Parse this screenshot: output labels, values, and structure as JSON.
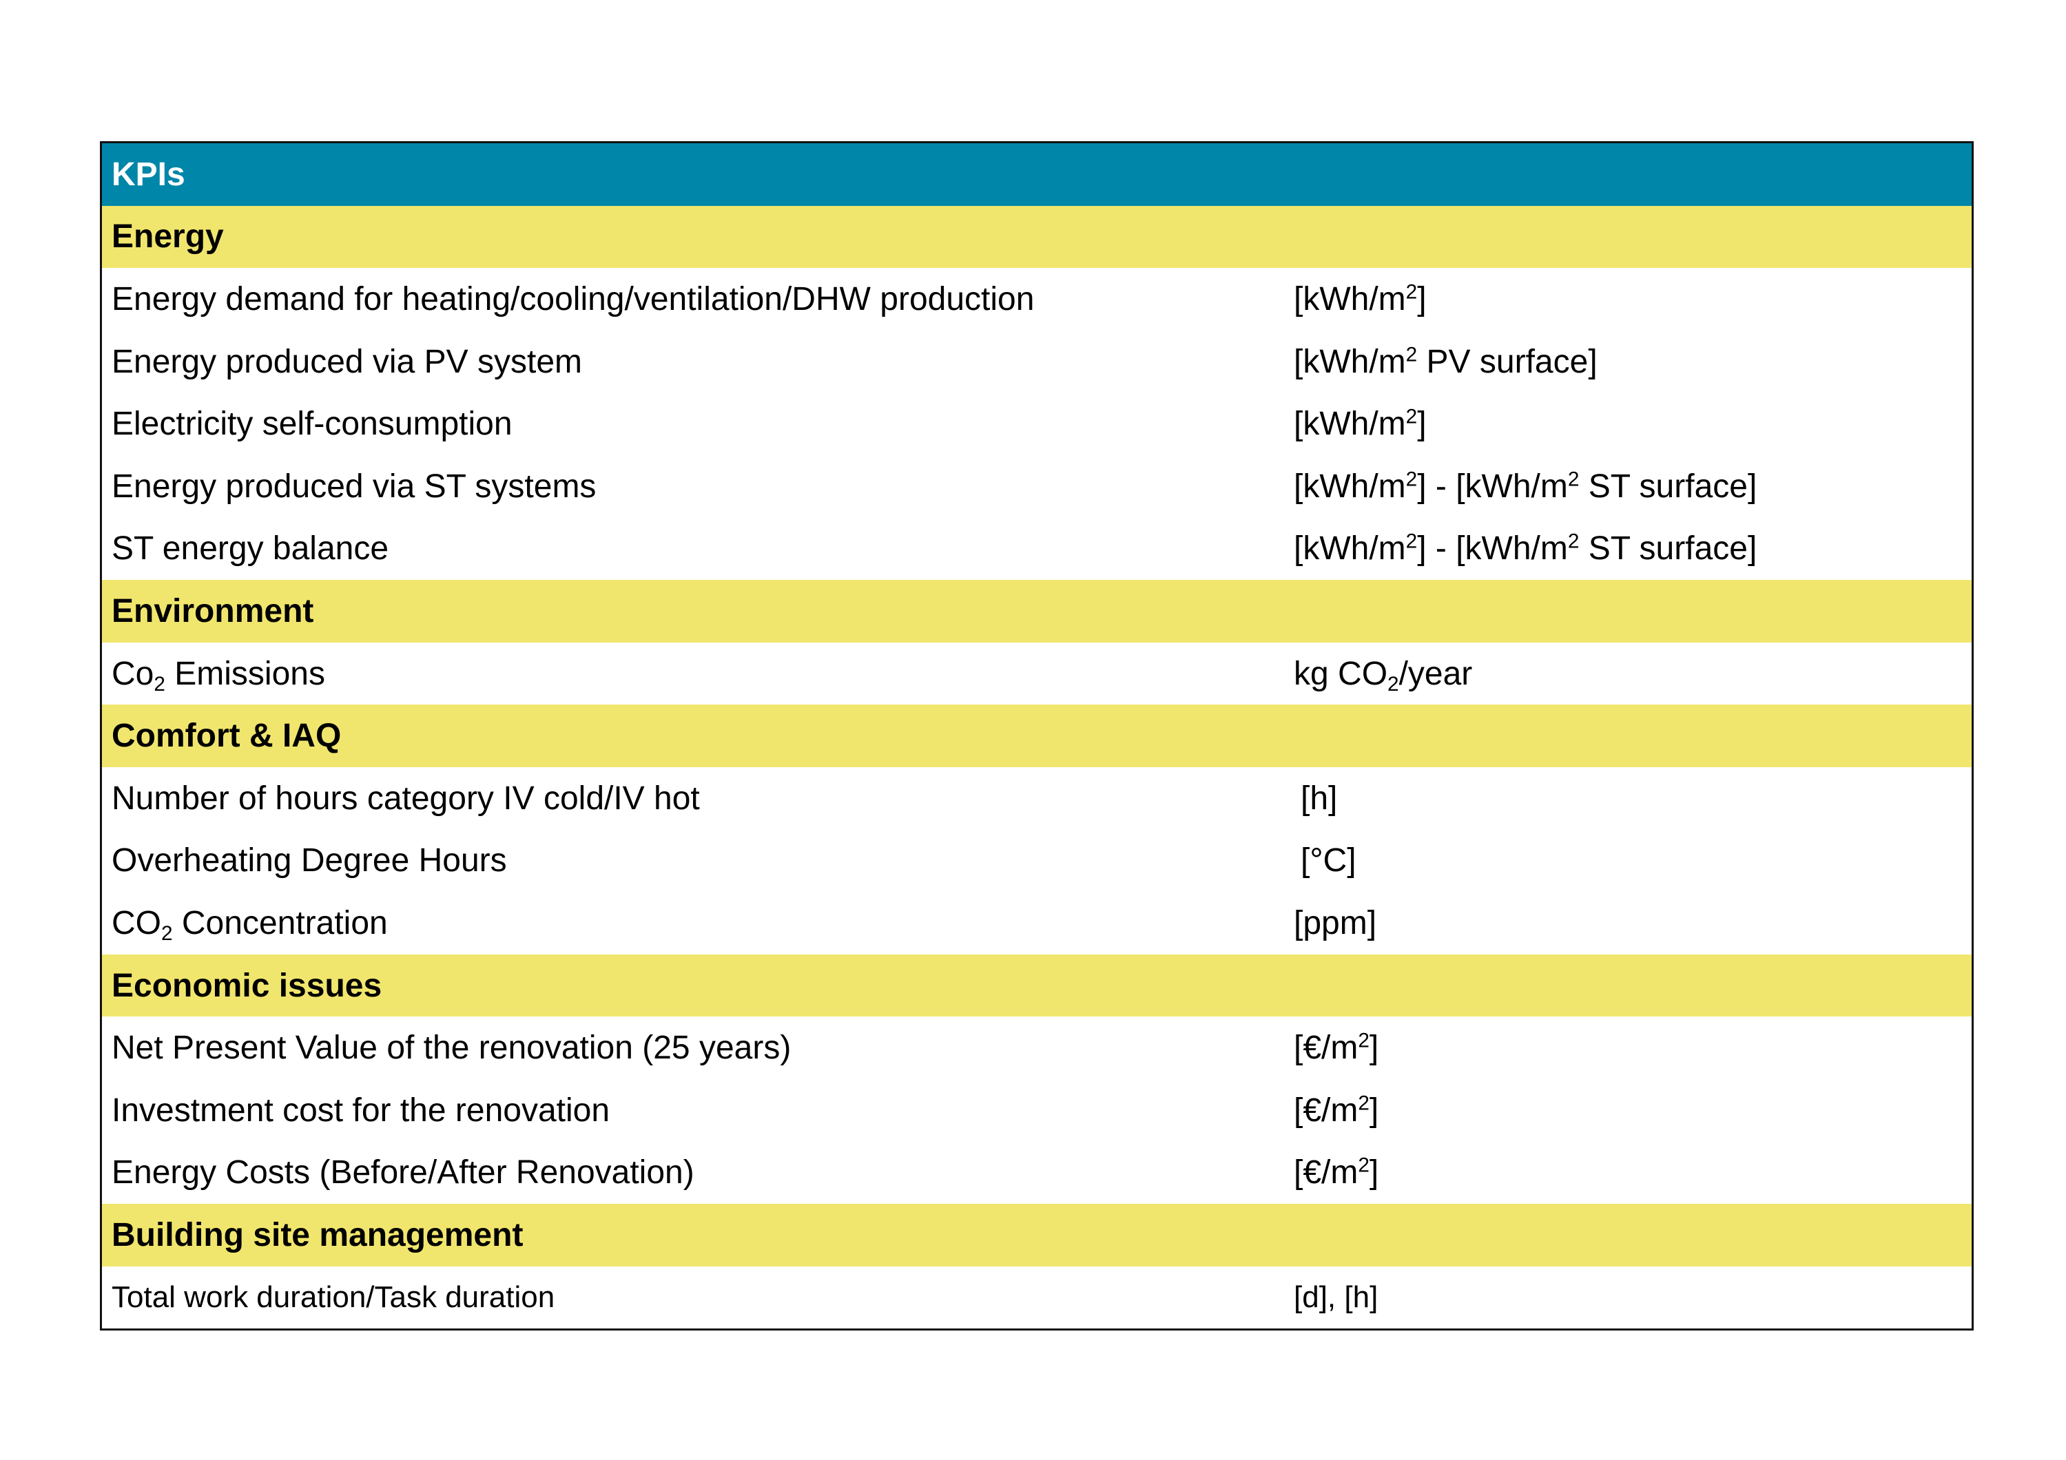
{
  "table": {
    "header": "KPIs",
    "sections": {
      "energy": {
        "title": "Energy",
        "rows": [
          {
            "name": "Energy demand for heating/cooling/ventilation/DHW production",
            "unit": "[kWh/m",
            "unit_sup": "2",
            "unit_tail": "]"
          },
          {
            "name": "Energy produced via PV system",
            "unit": "[kWh/m",
            "unit_sup": "2",
            "unit_tail": " PV surface]"
          },
          {
            "name": "Electricity self-consumption",
            "unit": "[kWh/m",
            "unit_sup": "2",
            "unit_tail": "]"
          },
          {
            "name": "Energy produced via ST systems",
            "unit": "[kWh/m",
            "unit_sup": "2",
            "unit_mid": "] - [kWh/m",
            "unit_sup2": "2",
            "unit_tail": " ST surface]"
          },
          {
            "name": "ST energy balance",
            "unit": "[kWh/m",
            "unit_sup": "2",
            "unit_mid": "] - [kWh/m",
            "unit_sup2": "2",
            "unit_tail": " ST surface]"
          }
        ]
      },
      "environment": {
        "title": "Environment",
        "rows": [
          {
            "name": "Co",
            "name_sub": "2",
            "name_tail": " Emissions",
            "unit": "kg CO",
            "unit_sub": "2",
            "unit_tail": "/year"
          }
        ]
      },
      "comfort": {
        "title": "Comfort & IAQ",
        "rows": [
          {
            "name": "Number of hours category IV cold/IV hot",
            "unit": "[h]"
          },
          {
            "name": "Overheating Degree Hours",
            "unit": "[°C]"
          },
          {
            "name": "CO",
            "name_sub": "2",
            "name_tail": " Concentration",
            "unit": "[ppm]"
          }
        ]
      },
      "economic": {
        "title": "Economic issues",
        "rows": [
          {
            "name": "Net Present Value of the renovation (25 years)",
            "unit": "[€/m",
            "unit_sup": "2",
            "unit_tail": "]"
          },
          {
            "name": "Investment cost for the renovation",
            "unit": "[€/m",
            "unit_sup": "2",
            "unit_tail": "]"
          },
          {
            "name": "Energy Costs (Before/After Renovation)",
            "unit": "[€/m",
            "unit_sup": "2",
            "unit_tail": "]"
          }
        ]
      },
      "building": {
        "title": "Building site management",
        "rows": [
          {
            "name": "Total work duration/Task duration",
            "unit": "[d], [h]"
          }
        ]
      }
    }
  },
  "colors": {
    "header_bg": "#0086a8",
    "section_bg": "#f1e66d",
    "border": "#111111"
  }
}
